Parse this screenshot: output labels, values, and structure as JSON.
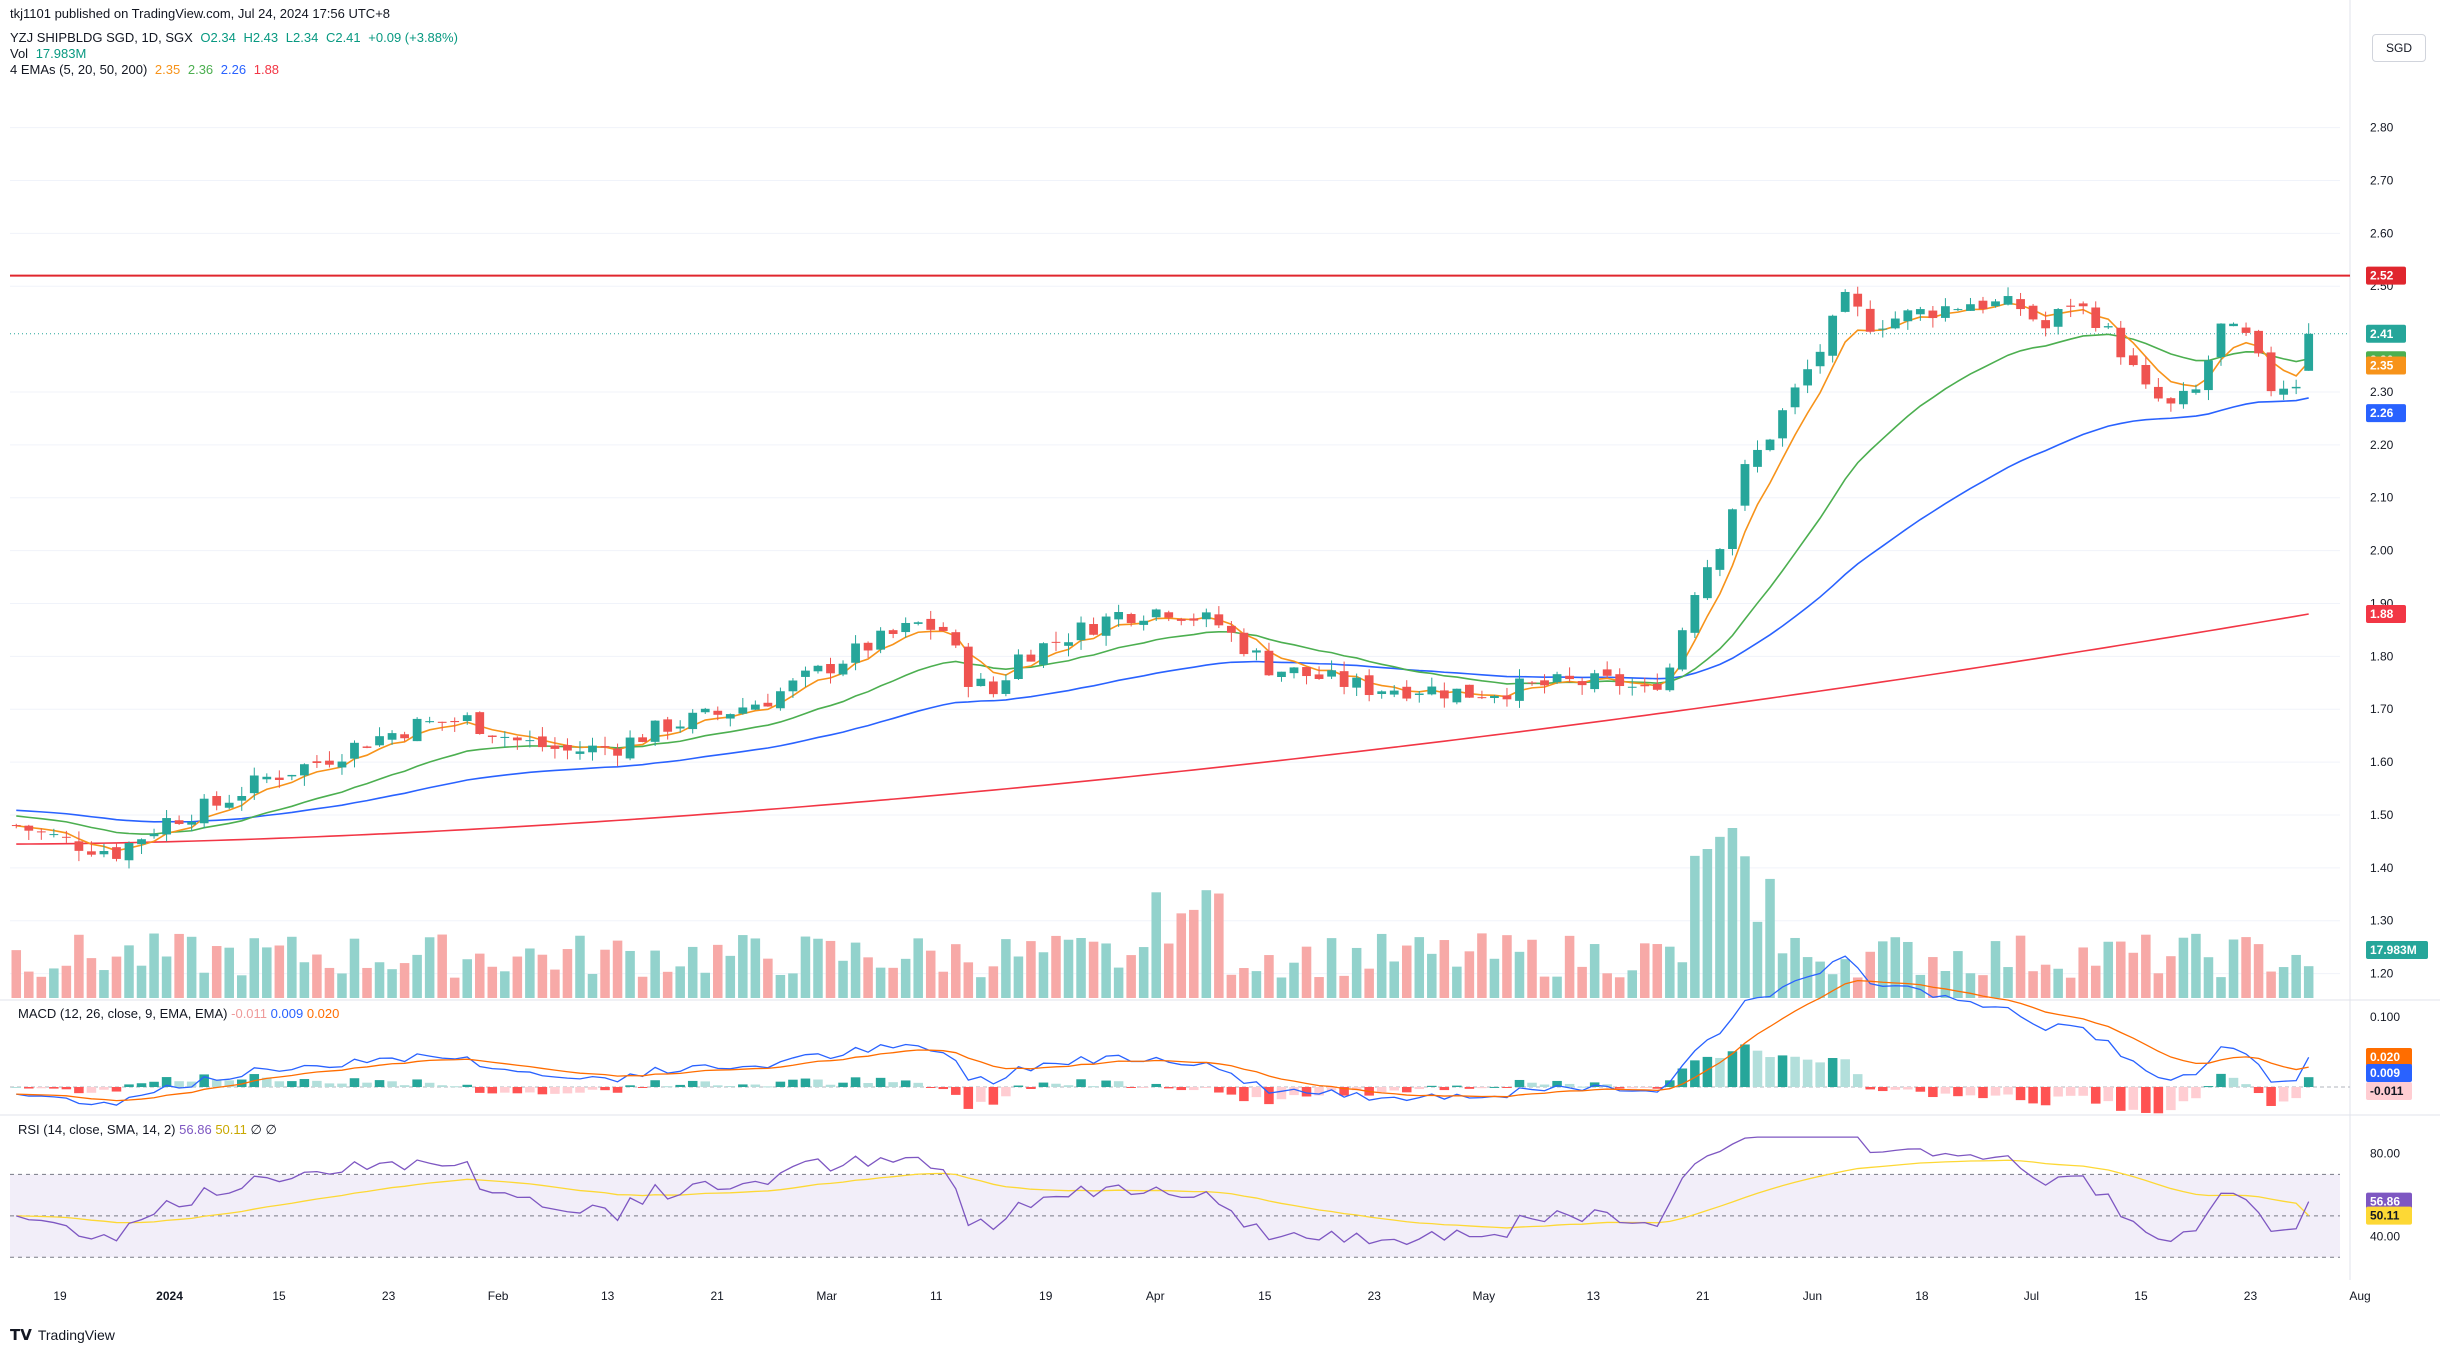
{
  "publisher_line": "tkj1101 published on TradingView.com, Jul 24, 2024 17:56 UTC+8",
  "header": {
    "symbol": "YZJ SHIPBLDG SGD, 1D, SGX",
    "ohlc": {
      "O": "O2.34",
      "H": "H2.43",
      "L": "L2.34",
      "C": "C2.41",
      "chg": "+0.09 (+3.88%)"
    },
    "vol_label": "Vol",
    "vol_value": "17.983M",
    "ema_label": "4 EMAs (5, 20, 50, 200)",
    "ema_values": [
      "2.35",
      "2.36",
      "2.26",
      "1.88"
    ]
  },
  "currency_button": "SGD",
  "macd_title": {
    "label": "MACD (12, 26, close, 9, EMA, EMA)",
    "hist": "-0.011",
    "macd": "0.009",
    "signal": "0.020"
  },
  "rsi_title": {
    "label": "RSI (14, close, SMA, 14, 2)",
    "rsi": "56.86",
    "ma": "50.11",
    "extra1": "∅",
    "extra2": "∅"
  },
  "brand": "TradingView",
  "colors": {
    "up": "#26a69a",
    "down": "#ef5350",
    "ema5": "#f7931a",
    "ema20": "#4caf50",
    "ema50": "#2962ff",
    "ema200": "#f23645",
    "resistance": "#e0262e",
    "rsi": "#7e57c2",
    "rsi_ma": "#fdd835",
    "macd": "#2962ff",
    "signal": "#ff6d00"
  },
  "chart_data": {
    "type": "candlestick",
    "price_axis_ticks": [
      "2.80",
      "2.70",
      "2.60",
      "2.50",
      "2.30",
      "2.20",
      "2.10",
      "2.00",
      "1.90",
      "1.80",
      "1.70",
      "1.60",
      "1.50",
      "1.40",
      "1.30",
      "1.20"
    ],
    "price_range": [
      1.15,
      2.89
    ],
    "resistance_level": 2.52,
    "resistance_label": "2.52",
    "last_price": 2.41,
    "last_price_label": "2.41",
    "ema_labels": [
      {
        "value": 2.36,
        "text": "2.36",
        "color": "#4caf50"
      },
      {
        "value": 2.35,
        "text": "2.35",
        "color": "#f7931a"
      },
      {
        "value": 2.26,
        "text": "2.26",
        "color": "#2962ff"
      },
      {
        "value": 1.88,
        "text": "1.88",
        "color": "#f23645"
      }
    ],
    "volume_label": "17.983M",
    "x_axis_labels": [
      "19",
      "2024",
      "15",
      "23",
      "Feb",
      "13",
      "21",
      "Mar",
      "11",
      "19",
      "Apr",
      "15",
      "23",
      "May",
      "13",
      "21",
      "Jun",
      "18",
      "Jul",
      "15",
      "23",
      "Aug"
    ],
    "candles_anchor_closes": [
      [
        0,
        1.48
      ],
      [
        4,
        1.45
      ],
      [
        8,
        1.43
      ],
      [
        12,
        1.49
      ],
      [
        16,
        1.52
      ],
      [
        20,
        1.57
      ],
      [
        24,
        1.6
      ],
      [
        28,
        1.64
      ],
      [
        32,
        1.67
      ],
      [
        36,
        1.68
      ],
      [
        40,
        1.64
      ],
      [
        44,
        1.62
      ],
      [
        48,
        1.63
      ],
      [
        52,
        1.67
      ],
      [
        56,
        1.69
      ],
      [
        60,
        1.72
      ],
      [
        64,
        1.77
      ],
      [
        68,
        1.82
      ],
      [
        72,
        1.86
      ],
      [
        74,
        1.85
      ],
      [
        76,
        1.76
      ],
      [
        78,
        1.73
      ],
      [
        80,
        1.8
      ],
      [
        84,
        1.84
      ],
      [
        88,
        1.88
      ],
      [
        92,
        1.89
      ],
      [
        96,
        1.86
      ],
      [
        100,
        1.78
      ],
      [
        104,
        1.76
      ],
      [
        108,
        1.74
      ],
      [
        112,
        1.74
      ],
      [
        116,
        1.73
      ],
      [
        120,
        1.74
      ],
      [
        124,
        1.75
      ],
      [
        128,
        1.75
      ],
      [
        130,
        1.73
      ],
      [
        132,
        1.78
      ],
      [
        134,
        1.93
      ],
      [
        136,
        2.02
      ],
      [
        138,
        2.15
      ],
      [
        140,
        2.22
      ],
      [
        142,
        2.3
      ],
      [
        144,
        2.38
      ],
      [
        146,
        2.47
      ],
      [
        148,
        2.43
      ],
      [
        152,
        2.45
      ],
      [
        156,
        2.47
      ],
      [
        160,
        2.46
      ],
      [
        162,
        2.42
      ],
      [
        164,
        2.47
      ],
      [
        166,
        2.44
      ],
      [
        168,
        2.38
      ],
      [
        170,
        2.3
      ],
      [
        172,
        2.27
      ],
      [
        174,
        2.3
      ],
      [
        176,
        2.42
      ],
      [
        178,
        2.4
      ],
      [
        180,
        2.31
      ],
      [
        182,
        2.32
      ],
      [
        183,
        2.41
      ]
    ],
    "macd_axis_ticks": [
      "0.100"
    ],
    "macd_labels": {
      "signal": "0.020",
      "macd": "0.009",
      "hist": "-0.011"
    },
    "rsi_axis_ticks": [
      "80.00",
      "40.00"
    ],
    "rsi_labels": {
      "rsi": "56.86",
      "ma": "50.11"
    },
    "rsi_overbought": 70,
    "rsi_oversold": 30
  }
}
